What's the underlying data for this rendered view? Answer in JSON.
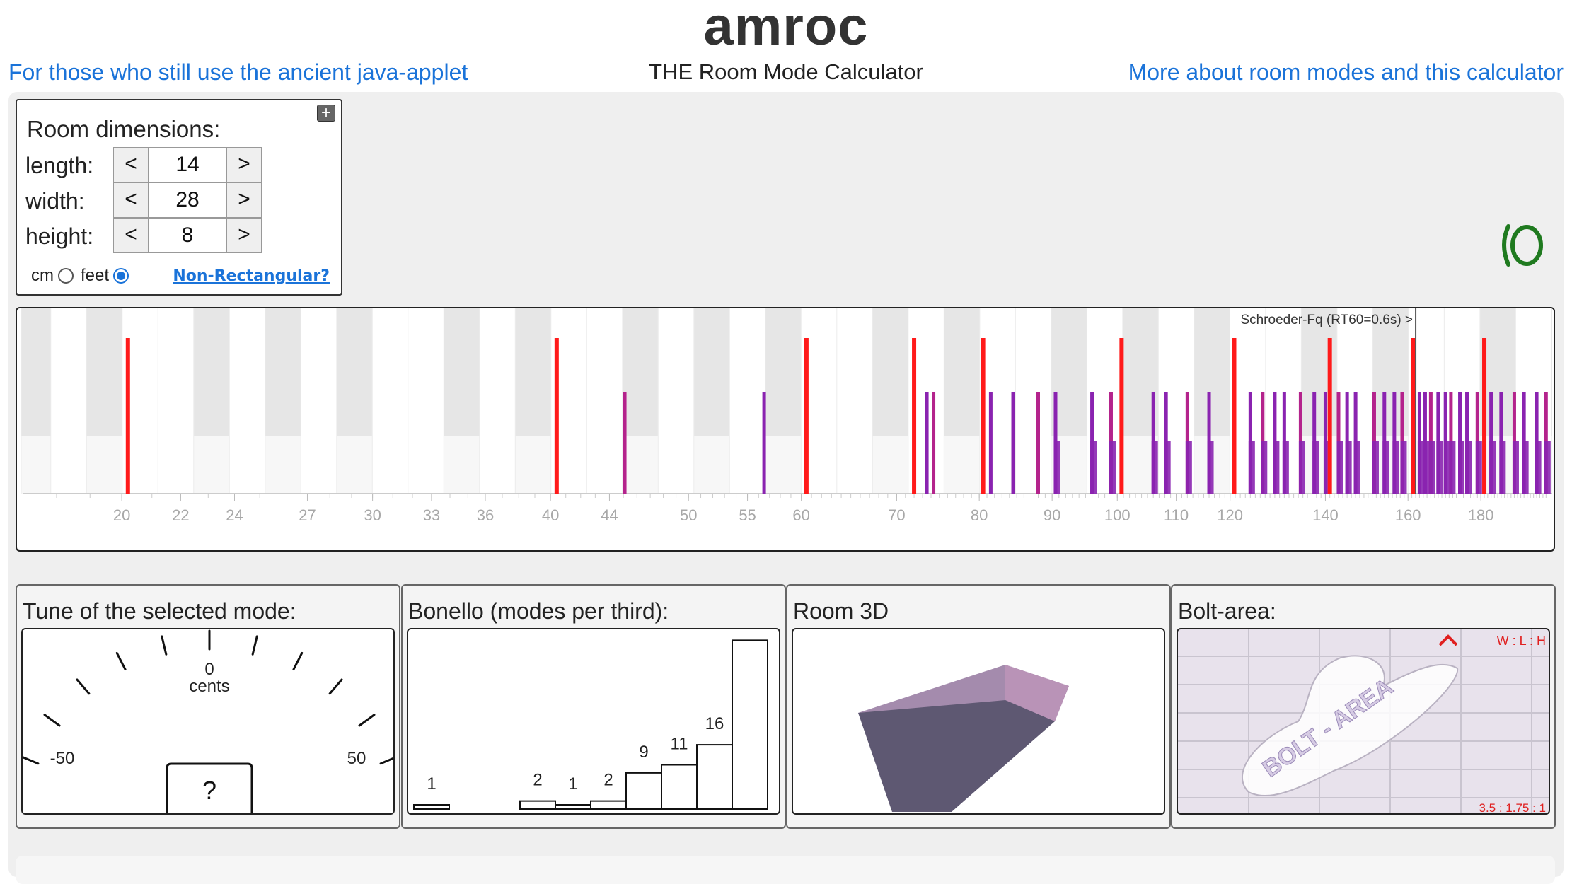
{
  "header": {
    "title": "amroc",
    "subtitle": "THE Room Mode Calculator",
    "link_left": "For those who still use the ancient java-applet",
    "link_right": "More about room modes and this calculator"
  },
  "dimensions": {
    "title": "Room dimensions:",
    "expand_icon": "plus-square-icon",
    "length": {
      "label": "length:",
      "value": "14"
    },
    "width": {
      "label": "width:",
      "value": "28"
    },
    "height": {
      "label": "height:",
      "value": "8"
    },
    "dec_label": "<",
    "inc_label": ">",
    "unit_cm": "cm",
    "unit_feet": "feet",
    "selected_unit": "feet",
    "non_rect_link": "Non-Rectangular?"
  },
  "spectrum": {
    "schroeder_label": "Schroeder-Fq (RT60=0.6s) >",
    "schroeder_freq": 162,
    "xmin": 17,
    "xmax": 202,
    "tick_labels": [
      20,
      22,
      24,
      27,
      30,
      33,
      36,
      40,
      44,
      50,
      55,
      60,
      70,
      80,
      90,
      100,
      110,
      120,
      140,
      160,
      180
    ],
    "axial_modes": [
      20.2,
      40.4,
      60.5,
      72,
      80.5,
      100.7,
      120.8,
      141,
      161.3,
      181
    ],
    "other_modes": [
      45.1,
      56.5,
      73.5,
      74.3,
      81.5,
      84.5,
      88,
      90.5,
      96,
      99,
      106,
      108.2,
      112,
      116,
      124,
      126.5,
      129,
      131,
      134.5,
      137.5,
      140,
      143,
      145,
      147,
      151.5,
      154,
      156.5,
      158.5,
      163,
      164.5,
      166,
      168,
      170,
      171.5,
      174,
      176,
      179,
      183,
      186,
      190,
      193,
      197,
      200
    ]
  },
  "tune": {
    "title": "Tune of the selected mode:",
    "center_value": "0",
    "unit": "cents",
    "min_label": "-50",
    "max_label": "50",
    "readout": "?"
  },
  "bonello": {
    "title": "Bonello (modes per third):",
    "values": [
      1,
      0,
      0,
      2,
      1,
      2,
      9,
      11,
      16,
      42
    ],
    "ymax": 44
  },
  "room3d": {
    "title": "Room 3D",
    "colors": {
      "floor": "#5e5872",
      "wall": "#b993b7",
      "side": "#9a7ea4"
    }
  },
  "bolt": {
    "title": "Bolt-area:",
    "axis_label": "W : L : H",
    "ratio": "3.5 : 1.75 : 1",
    "watermark": "BOLT - AREA",
    "marker_icon": "caret-up-icon"
  },
  "colors": {
    "link": "#1a73d9",
    "axial": "#ff1a1a",
    "mixed": "#b4238c",
    "oblique": "#8a23b0"
  }
}
